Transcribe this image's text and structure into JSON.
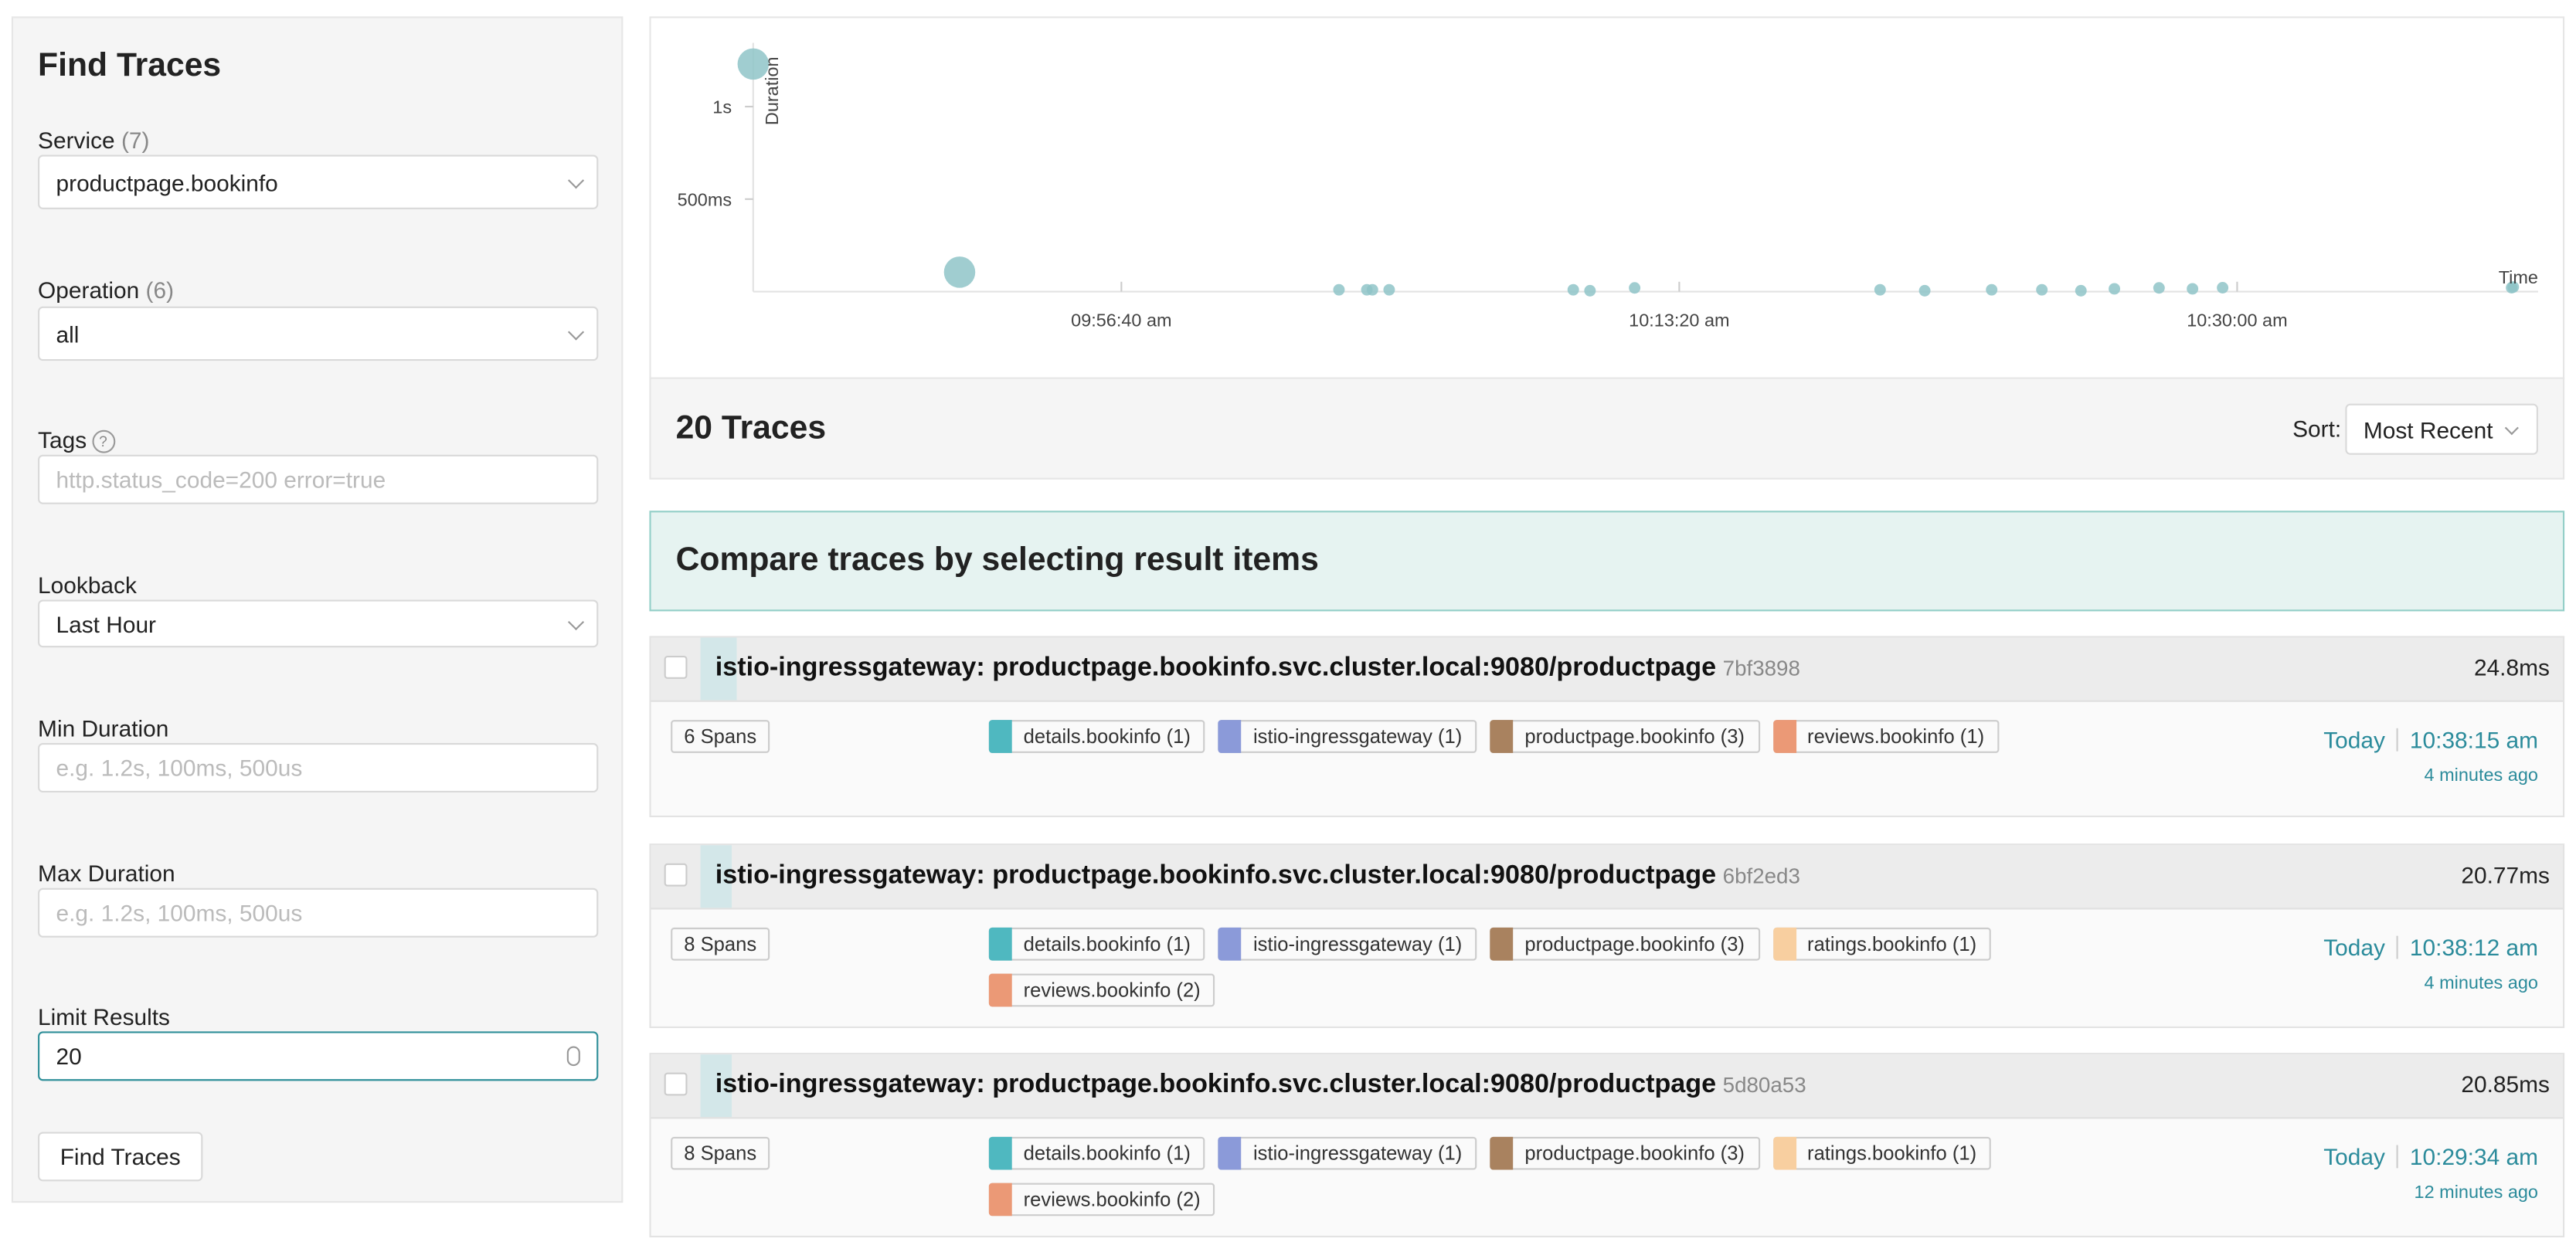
{
  "sidebar": {
    "title": "Find Traces",
    "service": {
      "label": "Service",
      "count": "(7)",
      "value": "productpage.bookinfo"
    },
    "operation": {
      "label": "Operation",
      "count": "(6)",
      "value": "all"
    },
    "tags": {
      "label": "Tags",
      "help_icon": "?",
      "placeholder": "http.status_code=200 error=true"
    },
    "lookback": {
      "label": "Lookback",
      "value": "Last Hour"
    },
    "min_duration": {
      "label": "Min Duration",
      "placeholder": "e.g. 1.2s, 100ms, 500us"
    },
    "max_duration": {
      "label": "Max Duration",
      "placeholder": "e.g. 1.2s, 100ms, 500us"
    },
    "limit": {
      "label": "Limit Results",
      "value": "20"
    },
    "button": "Find Traces"
  },
  "chart_data": {
    "type": "scatter",
    "ylabel": "Duration",
    "xlabel": "Time",
    "y_ticks": [
      "1s",
      "500ms"
    ],
    "x_ticks": [
      "09:56:40 am",
      "10:13:20 am",
      "10:30:00 am"
    ],
    "ylim_ms": [
      0,
      1300
    ],
    "xlim": [
      "09:45:40",
      "10:38:30"
    ],
    "points": [
      {
        "time": "09:45:40",
        "duration_ms": 1230,
        "size": "large"
      },
      {
        "time": "09:51:50",
        "duration_ms": 105,
        "size": "large"
      },
      {
        "time": "10:03:10",
        "duration_ms": 10,
        "size": "small"
      },
      {
        "time": "10:04:00",
        "duration_ms": 10,
        "size": "small"
      },
      {
        "time": "10:04:10",
        "duration_ms": 10,
        "size": "small"
      },
      {
        "time": "10:04:40",
        "duration_ms": 10,
        "size": "small"
      },
      {
        "time": "10:10:10",
        "duration_ms": 10,
        "size": "small"
      },
      {
        "time": "10:10:40",
        "duration_ms": 5,
        "size": "small"
      },
      {
        "time": "10:12:00",
        "duration_ms": 20,
        "size": "small"
      },
      {
        "time": "10:19:20",
        "duration_ms": 10,
        "size": "small"
      },
      {
        "time": "10:20:40",
        "duration_ms": 5,
        "size": "small"
      },
      {
        "time": "10:22:40",
        "duration_ms": 10,
        "size": "small"
      },
      {
        "time": "10:24:10",
        "duration_ms": 10,
        "size": "small"
      },
      {
        "time": "10:25:20",
        "duration_ms": 5,
        "size": "small"
      },
      {
        "time": "10:26:20",
        "duration_ms": 15,
        "size": "small"
      },
      {
        "time": "10:27:40",
        "duration_ms": 20,
        "size": "small"
      },
      {
        "time": "10:28:40",
        "duration_ms": 15,
        "size": "small"
      },
      {
        "time": "10:29:34",
        "duration_ms": 21,
        "size": "small"
      },
      {
        "time": "10:38:12",
        "duration_ms": 21,
        "size": "small"
      },
      {
        "time": "10:38:15",
        "duration_ms": 25,
        "size": "small"
      }
    ]
  },
  "results": {
    "count_label": "20 Traces",
    "sort_label": "Sort:",
    "sort_value": "Most Recent",
    "compare_text": "Compare traces by selecting result items"
  },
  "traces": [
    {
      "name": "istio-ingressgateway: productpage.bookinfo.svc.cluster.local:9080/productpage",
      "id": "7bf3898",
      "duration": "24.8ms",
      "spans": "6 Spans",
      "services": [
        {
          "name": "details.bookinfo (1)",
          "color": "#4fb8c0"
        },
        {
          "name": "istio-ingressgateway (1)",
          "color": "#8b9ad9"
        },
        {
          "name": "productpage.bookinfo (3)",
          "color": "#a9825f"
        },
        {
          "name": "reviews.bookinfo (1)",
          "color": "#eb9976"
        }
      ],
      "day": "Today",
      "time": "10:38:15 am",
      "ago": "4 minutes ago"
    },
    {
      "name": "istio-ingressgateway: productpage.bookinfo.svc.cluster.local:9080/productpage",
      "id": "6bf2ed3",
      "duration": "20.77ms",
      "spans": "8 Spans",
      "services": [
        {
          "name": "details.bookinfo (1)",
          "color": "#4fb8c0"
        },
        {
          "name": "istio-ingressgateway (1)",
          "color": "#8b9ad9"
        },
        {
          "name": "productpage.bookinfo (3)",
          "color": "#a9825f"
        },
        {
          "name": "ratings.bookinfo (1)",
          "color": "#f8cfa0"
        },
        {
          "name": "reviews.bookinfo (2)",
          "color": "#eb9976"
        }
      ],
      "day": "Today",
      "time": "10:38:12 am",
      "ago": "4 minutes ago"
    },
    {
      "name": "istio-ingressgateway: productpage.bookinfo.svc.cluster.local:9080/productpage",
      "id": "5d80a53",
      "duration": "20.85ms",
      "spans": "8 Spans",
      "services": [
        {
          "name": "details.bookinfo (1)",
          "color": "#4fb8c0"
        },
        {
          "name": "istio-ingressgateway (1)",
          "color": "#8b9ad9"
        },
        {
          "name": "productpage.bookinfo (3)",
          "color": "#a9825f"
        },
        {
          "name": "ratings.bookinfo (1)",
          "color": "#f8cfa0"
        },
        {
          "name": "reviews.bookinfo (2)",
          "color": "#eb9976"
        }
      ],
      "day": "Today",
      "time": "10:29:34 am",
      "ago": "12 minutes ago"
    }
  ]
}
